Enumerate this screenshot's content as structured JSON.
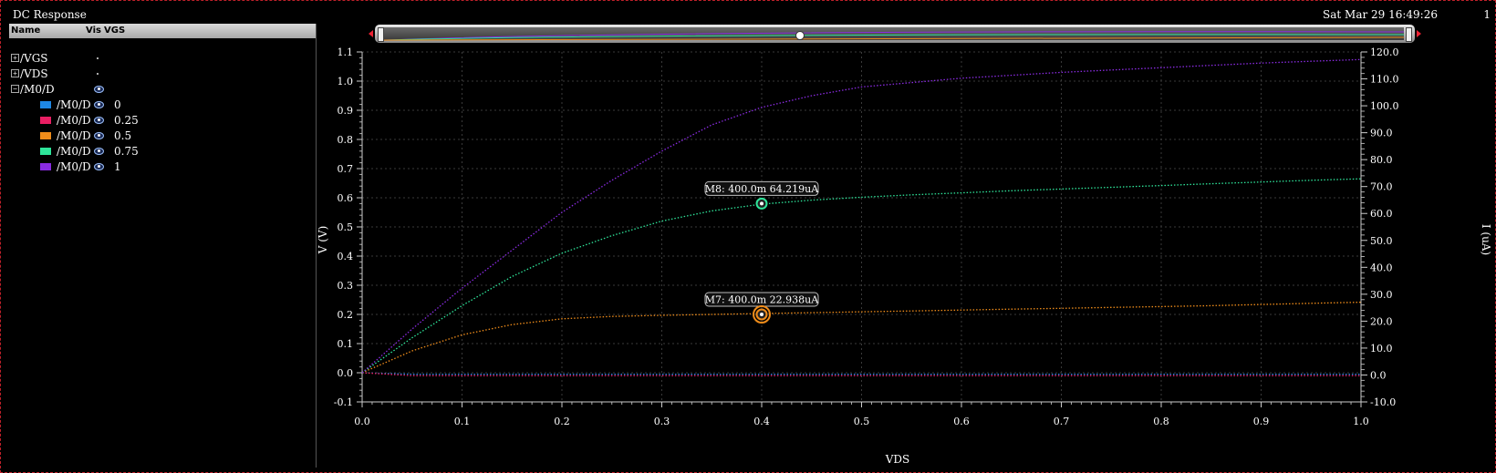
{
  "window": {
    "title": "DC Response",
    "timestamp": "Sat Mar 29 16:49:26",
    "corner": "1"
  },
  "legend": {
    "headers": {
      "name": "Name",
      "vis": "Vis",
      "vgs": "VGS"
    },
    "groups": [
      {
        "label": "/VGS",
        "expander": "+"
      },
      {
        "label": "/VDS",
        "expander": "+"
      },
      {
        "label": "/M0/D",
        "expander": "−"
      }
    ],
    "items": [
      {
        "label": "/M0/D",
        "vgs": "0",
        "color": "#1e88e5"
      },
      {
        "label": "/M0/D",
        "vgs": "0.25",
        "color": "#e91e63"
      },
      {
        "label": "/M0/D",
        "vgs": "0.5",
        "color": "#ef8c1a"
      },
      {
        "label": "/M0/D",
        "vgs": "0.75",
        "color": "#2ee59a"
      },
      {
        "label": "/M0/D",
        "vgs": "1",
        "color": "#8a2be2"
      }
    ]
  },
  "chart_data": {
    "type": "line",
    "xlabel": "VDS",
    "ylabel": "V (V)",
    "y2label": "I (uA)",
    "xlim": [
      0,
      1.0
    ],
    "ylim": [
      -0.1,
      1.1
    ],
    "y2lim": [
      -10.0,
      120.0
    ],
    "xticks": [
      "0.0",
      "0.1",
      "0.2",
      "0.3",
      "0.4",
      "0.5",
      "0.6",
      "0.7",
      "0.8",
      "0.9",
      "1.0"
    ],
    "yticks": [
      "-0.1",
      "0.0",
      "0.1",
      "0.2",
      "0.3",
      "0.4",
      "0.5",
      "0.6",
      "0.7",
      "0.8",
      "0.9",
      "1.0",
      "1.1"
    ],
    "y2ticks": [
      "-10.0",
      "0.0",
      "10.0",
      "20.0",
      "30.0",
      "40.0",
      "50.0",
      "60.0",
      "70.0",
      "80.0",
      "90.0",
      "100.0",
      "110.0",
      "120.0"
    ],
    "grid": true,
    "x": [
      0.0,
      0.05,
      0.1,
      0.15,
      0.2,
      0.25,
      0.3,
      0.35,
      0.4,
      0.45,
      0.5,
      0.55,
      0.6,
      0.65,
      0.7,
      0.75,
      0.8,
      0.85,
      0.9,
      0.95,
      1.0
    ],
    "series": [
      {
        "name": "0",
        "color": "#1e88e5",
        "values": [
          0.0,
          -0.005,
          -0.005,
          -0.005,
          -0.005,
          -0.005,
          -0.005,
          -0.005,
          -0.005,
          -0.005,
          -0.005,
          -0.005,
          -0.005,
          -0.005,
          -0.005,
          -0.005,
          -0.005,
          -0.005,
          -0.005,
          -0.005,
          -0.005
        ]
      },
      {
        "name": "0.25",
        "color": "#e91e63",
        "values": [
          0.0,
          -0.01,
          -0.01,
          -0.01,
          -0.01,
          -0.01,
          -0.01,
          -0.01,
          -0.01,
          -0.01,
          -0.01,
          -0.01,
          -0.01,
          -0.01,
          -0.01,
          -0.01,
          -0.01,
          -0.01,
          -0.01,
          -0.01,
          -0.01
        ]
      },
      {
        "name": "0.5",
        "color": "#ef8c1a",
        "values": [
          0.0,
          0.075,
          0.13,
          0.165,
          0.185,
          0.193,
          0.197,
          0.2,
          0.203,
          0.206,
          0.209,
          0.212,
          0.215,
          0.218,
          0.221,
          0.224,
          0.227,
          0.23,
          0.234,
          0.238,
          0.242
        ]
      },
      {
        "name": "0.75",
        "color": "#2ee59a",
        "values": [
          0.0,
          0.12,
          0.23,
          0.33,
          0.41,
          0.47,
          0.52,
          0.555,
          0.578,
          0.592,
          0.602,
          0.61,
          0.617,
          0.624,
          0.63,
          0.636,
          0.642,
          0.648,
          0.654,
          0.66,
          0.665
        ]
      },
      {
        "name": "1",
        "color": "#8a2be2",
        "values": [
          0.0,
          0.15,
          0.29,
          0.42,
          0.55,
          0.66,
          0.76,
          0.85,
          0.91,
          0.95,
          0.98,
          0.995,
          1.01,
          1.02,
          1.03,
          1.038,
          1.046,
          1.054,
          1.062,
          1.068,
          1.074
        ]
      }
    ],
    "markers": [
      {
        "label": "M8: 400.0m 64.219uA",
        "x": 0.4,
        "y": 0.58,
        "color": "#2ee59a"
      },
      {
        "label": "M7: 400.0m 22.938uA",
        "x": 0.4,
        "y": 0.2,
        "color": "#ef8c1a"
      }
    ]
  }
}
